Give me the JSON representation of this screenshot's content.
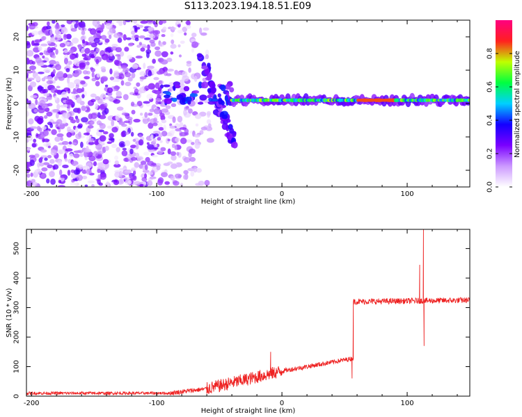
{
  "title": "S113.2023.194.18.51.E09",
  "chart_data": [
    {
      "type": "heatmap",
      "xlabel": "Height of straight line (km)",
      "ylabel": "Frequency (Hz)",
      "xlim": [
        -204,
        150
      ],
      "ylim": [
        -25,
        25
      ],
      "xticks": [
        -200,
        -100,
        0,
        100
      ],
      "yticks": [
        -20,
        -10,
        0,
        10,
        20
      ],
      "colorbar": {
        "label": "Normalized spectral amplitude",
        "range": [
          0,
          1
        ],
        "ticks": [
          "0.0",
          "0.2",
          "0.4",
          "0.6",
          "0.8"
        ],
        "colors": [
          "#ffffff",
          "#cc99ff",
          "#7a00ff",
          "#1400ff",
          "#00d0ff",
          "#00ff40",
          "#c0ff00",
          "#ff2020",
          "#ff0080"
        ]
      },
      "features": {
        "noise_region_km": [
          -204,
          -80
        ],
        "diagonal_signal_from": [
          -65,
          14
        ],
        "diagonal_signal_to": [
          -38,
          -12
        ],
        "stable_line_freq_hz": 1,
        "stable_line_km": [
          -40,
          150
        ]
      }
    },
    {
      "type": "line",
      "xlabel": "Height of straight line (km)",
      "ylabel": "SNR (10 * v/v)",
      "xlim": [
        -204,
        150
      ],
      "ylim": [
        0,
        565
      ],
      "xticks": [
        -200,
        -100,
        0,
        100
      ],
      "yticks": [
        0,
        100,
        200,
        300,
        400,
        500
      ],
      "color": "#ee2222",
      "segments": [
        {
          "x_start": -204,
          "x_end": -90,
          "level_start": 10,
          "level_end": 10,
          "noise": 5
        },
        {
          "x_start": -90,
          "x_end": -60,
          "level_start": 10,
          "level_end": 25,
          "noise": 8
        },
        {
          "x_start": -60,
          "x_end": 0,
          "level_start": 25,
          "level_end": 85,
          "noise": 22
        },
        {
          "x_start": 0,
          "x_end": 57,
          "level_start": 85,
          "level_end": 128,
          "noise": 8
        },
        {
          "x_start": 57,
          "x_end": 150,
          "level_start": 320,
          "level_end": 325,
          "noise": 10
        }
      ],
      "spikes": [
        {
          "x": -9,
          "y": 150
        },
        {
          "x": 56,
          "y": 60
        },
        {
          "x": 57,
          "y": 320
        },
        {
          "x": 110,
          "y": 445
        },
        {
          "x": 113,
          "y": 565
        },
        {
          "x": 113.5,
          "y": 170
        }
      ]
    }
  ]
}
